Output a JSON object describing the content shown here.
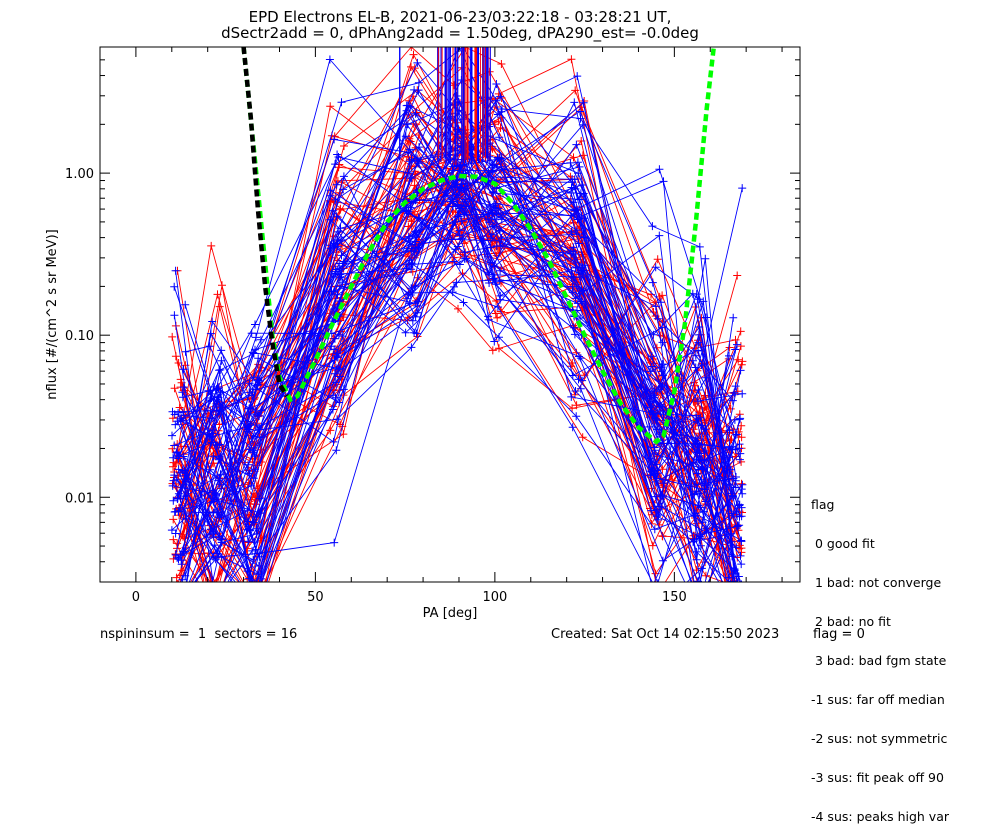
{
  "title": {
    "line1": "EPD Electrons EL-B, 2021-06-23/03:22:18 - 03:28:21 UT,",
    "line2": "dSectr2add = 0, dPhAng2add = 1.50deg, dPA290_est=  -0.0deg"
  },
  "legend": {
    "heading": "flag",
    "items": [
      " 0 good fit",
      " 1 bad: not converge",
      " 2 bad: no fit",
      " 3 bad: bad fgm state",
      "-1 sus: far off median",
      "-2 sus: not symmetric",
      "-3 sus: fit peak off 90",
      "-4 sus: peaks high var"
    ]
  },
  "footer": {
    "left": "nspininsum =  1  sectors = 16",
    "created": "Created: Sat Oct 14 02:15:50 2023",
    "flag": "flag = 0"
  },
  "colors": {
    "blue": "#0000ff",
    "red": "#ff0000",
    "green": "#00ff00",
    "black": "#000000"
  },
  "chart_data": {
    "type": "line",
    "xlabel": "PA [deg]",
    "ylabel": "nflux [#/(cm^2 s sr MeV)]",
    "xlim": [
      -10,
      185
    ],
    "ylim": [
      0.003,
      6
    ],
    "yscale": "log",
    "xticks": [
      0,
      50,
      100,
      150
    ],
    "xtick_labels": [
      "0",
      "50",
      "100",
      "150"
    ],
    "yticks": [
      0.01,
      0.1,
      1.0
    ],
    "ytick_labels": [
      "0.01",
      "0.10",
      "1.00"
    ],
    "pa_bins": [
      12,
      22,
      33,
      56,
      77,
      90,
      100,
      123,
      145,
      157,
      167
    ],
    "median_profile": [
      0.013,
      0.014,
      0.016,
      0.18,
      0.7,
      0.9,
      0.7,
      0.32,
      0.03,
      0.02,
      0.01
    ],
    "series": [
      {
        "color": "green",
        "style": "dashed-thick",
        "x": [
          30,
          33,
          36,
          38,
          40,
          43,
          45,
          50,
          55,
          60,
          65,
          70,
          75,
          80,
          85,
          90,
          95,
          100,
          105,
          110,
          115,
          120,
          125,
          130,
          135,
          140,
          145,
          147,
          150,
          153,
          156,
          159,
          161
        ],
        "y": [
          6,
          1.3,
          0.28,
          0.1,
          0.055,
          0.04,
          0.042,
          0.07,
          0.12,
          0.2,
          0.33,
          0.5,
          0.66,
          0.8,
          0.9,
          0.96,
          0.95,
          0.86,
          0.65,
          0.45,
          0.29,
          0.17,
          0.1,
          0.06,
          0.038,
          0.027,
          0.022,
          0.024,
          0.045,
          0.12,
          0.5,
          2.5,
          6
        ]
      },
      {
        "color": "black",
        "style": "dashed-thick",
        "x": [
          30,
          32,
          34,
          36,
          38,
          40,
          42
        ],
        "y": [
          6,
          2.2,
          0.6,
          0.2,
          0.09,
          0.05,
          0.042
        ]
      }
    ]
  }
}
